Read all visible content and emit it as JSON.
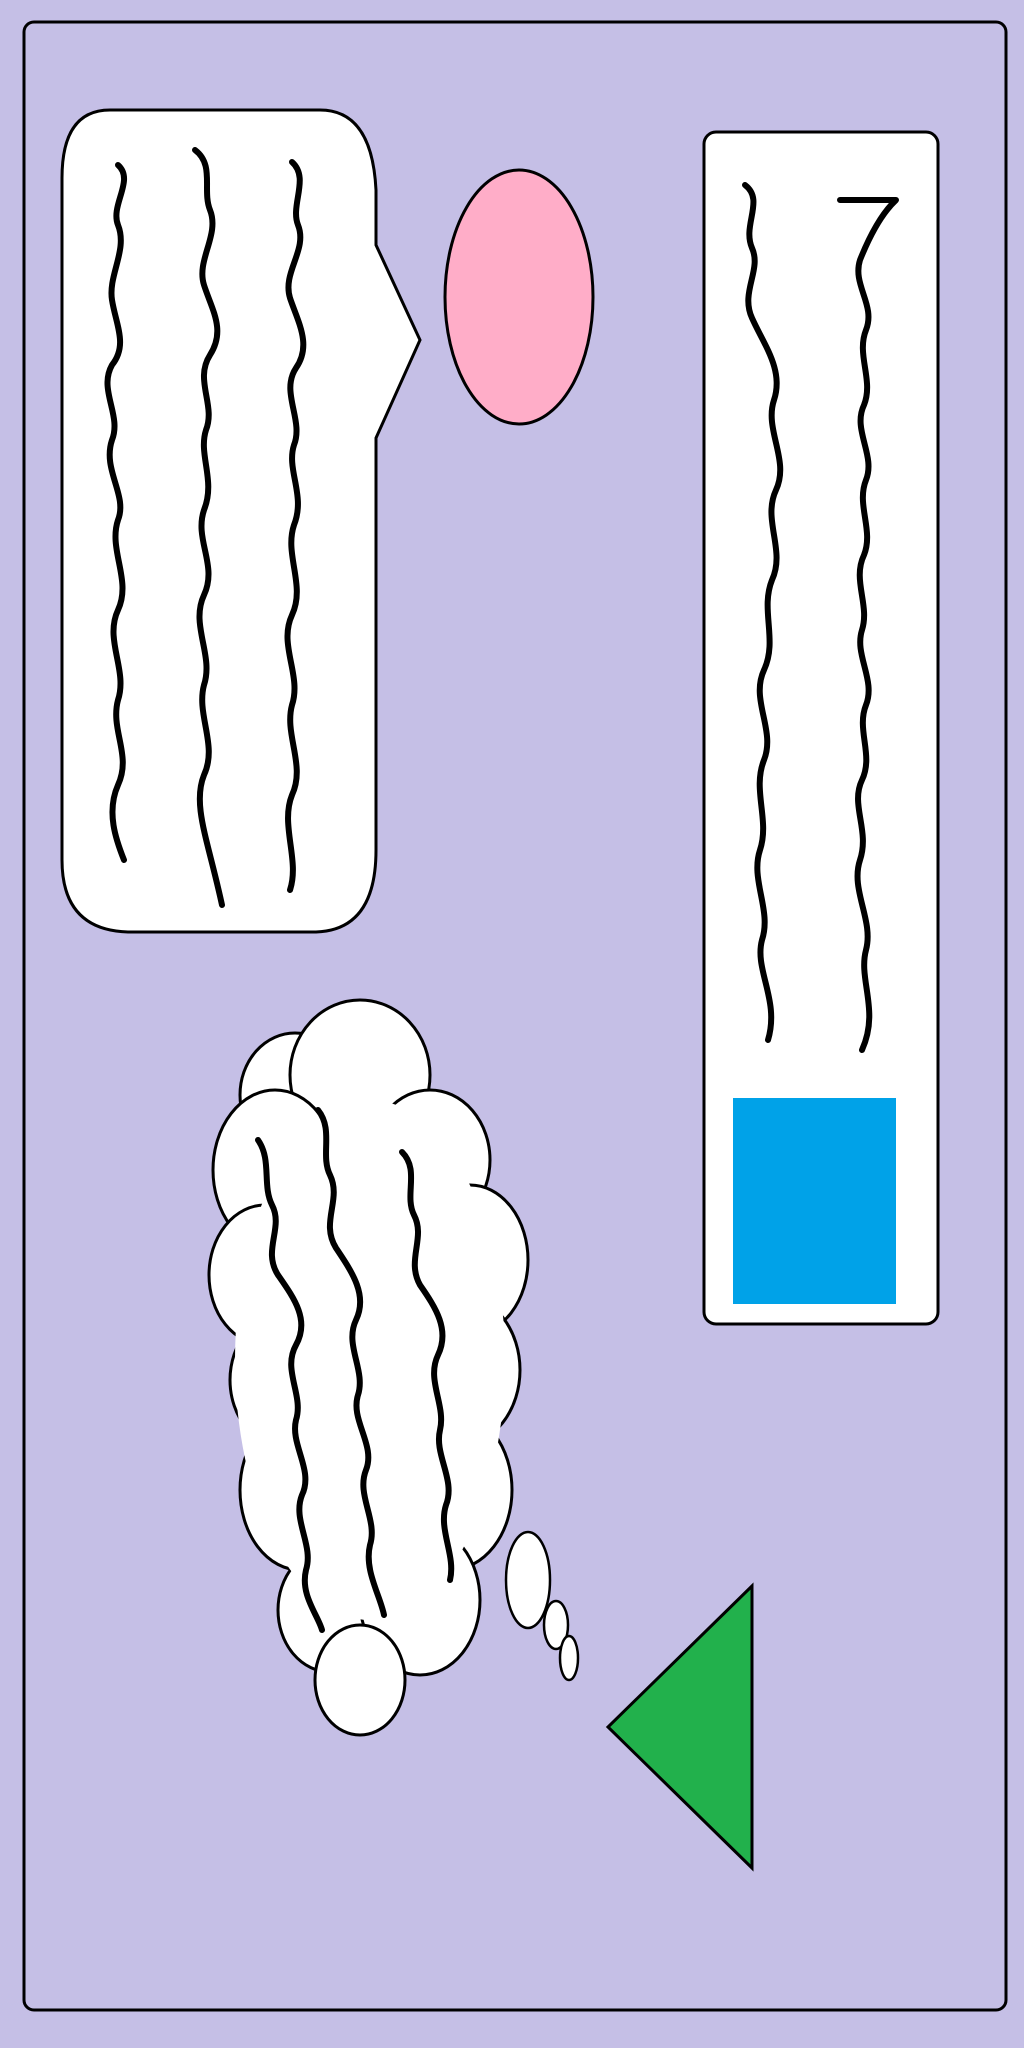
{
  "canvas": {
    "background": "#c5bfe6",
    "panel_border": "#000000",
    "panel_fill": "#c5bfe6"
  },
  "shapes": {
    "speech_bubble": {
      "fill": "#ffffff",
      "stroke": "#000000",
      "lines": 3,
      "icon": "speech-bubble"
    },
    "oval": {
      "fill": "#ffadc8",
      "stroke": "#000000",
      "icon": "oval"
    },
    "text_card": {
      "fill": "#ffffff",
      "stroke": "#000000",
      "lines": 2,
      "icon": "card"
    },
    "square": {
      "fill": "#00a2e8",
      "icon": "square"
    },
    "thought_cloud": {
      "fill": "#ffffff",
      "stroke": "#000000",
      "lines": 3,
      "icon": "thought-cloud"
    },
    "triangle": {
      "fill": "#22b14c",
      "stroke": "#000000",
      "icon": "triangle"
    }
  }
}
